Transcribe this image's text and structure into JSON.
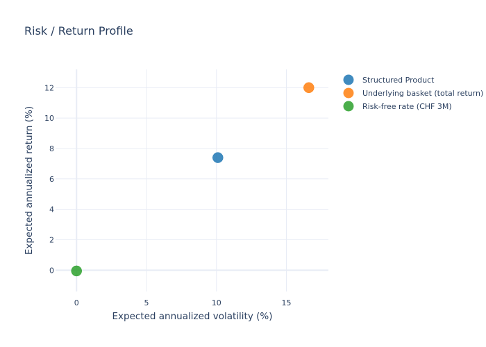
{
  "chart_data": {
    "type": "scatter",
    "title": "Risk / Return Profile",
    "xlabel": "Expected annualized volatility (%)",
    "ylabel": "Expected annualized return (%)",
    "xlim": [
      -1.5,
      18
    ],
    "ylim": [
      -1.4,
      13.2
    ],
    "xticks": [
      0,
      5,
      10,
      15
    ],
    "yticks": [
      0,
      2,
      4,
      6,
      8,
      10,
      12
    ],
    "grid": true,
    "legend_position": "top-right",
    "series": [
      {
        "name": "Structured Product",
        "color": "#1f77b4",
        "x": [
          10.1
        ],
        "y": [
          7.4
        ]
      },
      {
        "name": "Underlying basket (total return)",
        "color": "#ff7f0e",
        "x": [
          16.6
        ],
        "y": [
          12.0
        ]
      },
      {
        "name": "Risk-free rate (CHF 3M)",
        "color": "#2ca02c",
        "x": [
          0.0
        ],
        "y": [
          -0.05
        ]
      }
    ]
  }
}
